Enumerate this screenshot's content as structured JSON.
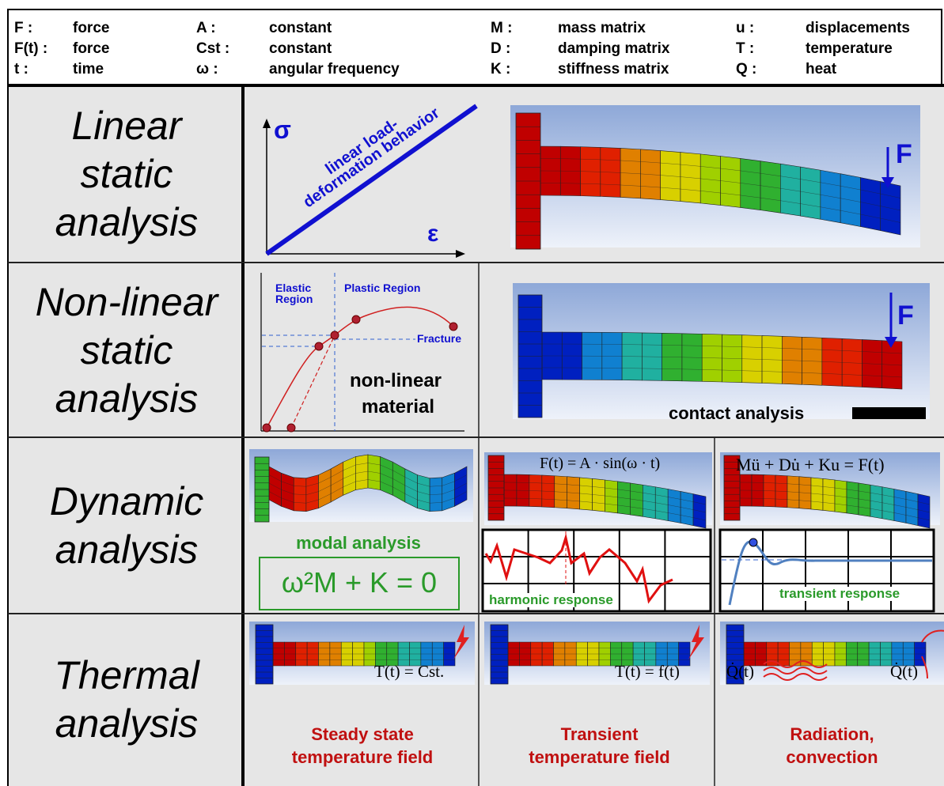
{
  "legend": [
    {
      "symbol": "F :",
      "meaning": "force"
    },
    {
      "symbol": "F(t) :",
      "meaning": "force"
    },
    {
      "symbol": "t :",
      "meaning": "time"
    },
    {
      "symbol": "A :",
      "meaning": "constant"
    },
    {
      "symbol": "Cst :",
      "meaning": "constant"
    },
    {
      "symbol": "ω :",
      "meaning": "angular frequency"
    },
    {
      "symbol": "M :",
      "meaning": "mass matrix"
    },
    {
      "symbol": "D :",
      "meaning": "damping matrix"
    },
    {
      "symbol": "K :",
      "meaning": "stiffness matrix"
    },
    {
      "symbol": "u :",
      "meaning": "displacements"
    },
    {
      "symbol": "T :",
      "meaning": "temperature"
    },
    {
      "symbol": "Q :",
      "meaning": "heat"
    }
  ],
  "rows": [
    {
      "label": "Linear static analysis",
      "sigma": "σ",
      "epsilon": "ε",
      "behavior_lines": [
        "linear load-",
        "deformation behavior"
      ],
      "force": "F"
    },
    {
      "label": "Non-linear static analysis",
      "elastic_lines": [
        "Elastic",
        "Region"
      ],
      "plastic": "Plastic Region",
      "fracture": "Fracture",
      "material_lines": [
        "non-linear",
        "material"
      ],
      "force": "F",
      "contact": "contact analysis"
    },
    {
      "label": "Dynamic analysis",
      "cells": [
        {
          "caption": "modal analysis",
          "equation": "ω²M + K = 0"
        },
        {
          "equation": "F(t) = A · sin(ω · t)",
          "caption": "harmonic response"
        },
        {
          "equation": "Mü + Du̇ + Ku = F(t)",
          "caption": "transient response"
        }
      ]
    },
    {
      "label": "Thermal analysis",
      "cells": [
        {
          "equation": "T(t) = Cst.",
          "caption": "Steady state temperature field"
        },
        {
          "equation": "T(t) = f(t)",
          "caption": "Transient temperature field"
        },
        {
          "equations": [
            "Q̇(t)",
            "Q̇(t)"
          ],
          "caption": "Radiation, convection"
        }
      ]
    }
  ]
}
